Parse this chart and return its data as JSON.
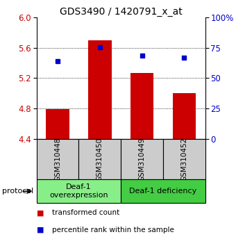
{
  "title": "GDS3490 / 1420791_x_at",
  "samples": [
    "GSM310448",
    "GSM310450",
    "GSM310449",
    "GSM310452"
  ],
  "bar_values": [
    4.79,
    5.7,
    5.27,
    5.0
  ],
  "bar_bottom": 4.4,
  "percentile_values": [
    0.64,
    0.755,
    0.685,
    0.665
  ],
  "left_ylim": [
    4.4,
    6.0
  ],
  "left_yticks": [
    4.4,
    4.8,
    5.2,
    5.6,
    6.0
  ],
  "right_yticks": [
    0,
    25,
    50,
    75,
    100
  ],
  "right_ylim": [
    0,
    100
  ],
  "bar_color": "#cc0000",
  "dot_color": "#0000cc",
  "protocol_groups": [
    {
      "label": "Deaf-1\noverexpression",
      "samples": [
        0,
        1
      ],
      "color": "#88ee88"
    },
    {
      "label": "Deaf-1 deficiency",
      "samples": [
        2,
        3
      ],
      "color": "#44cc44"
    }
  ],
  "protocol_label": "protocol",
  "legend_bar_label": "transformed count",
  "legend_dot_label": "percentile rank within the sample",
  "tick_label_color_left": "#cc0000",
  "tick_label_color_right": "#0000cc",
  "bar_width": 0.55,
  "xlabel_bg_color": "#cccccc",
  "title_fontsize": 10,
  "tick_fontsize": 8.5,
  "sample_fontsize": 7.5,
  "protocol_fontsize": 8,
  "legend_fontsize": 7.5
}
